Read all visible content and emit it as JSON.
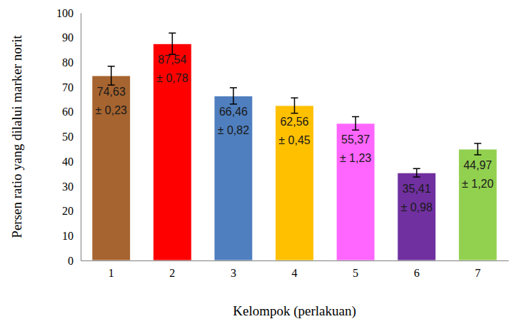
{
  "chart_data": {
    "type": "bar",
    "x_label": "Kelompok (perlakuan)",
    "y_label": "Persen ratio yang dilalui marker norit",
    "categories": [
      "1",
      "2",
      "3",
      "4",
      "5",
      "6",
      "7"
    ],
    "values": [
      74.63,
      87.54,
      66.46,
      62.56,
      55.37,
      35.41,
      44.97
    ],
    "value_labels": [
      "74,63",
      "87,54",
      "66,46",
      "62,56",
      "55,37",
      "35,41",
      "44,97"
    ],
    "errors": [
      0.23,
      0.78,
      0.82,
      0.45,
      1.23,
      0.98,
      1.2
    ],
    "error_labels": [
      "± 0,23",
      "± 0,78",
      "± 0,82",
      "± 0,45",
      "± 1,23",
      "± 0,98",
      "± 1,20"
    ],
    "error_bars": [
      3.8,
      4.3,
      3.3,
      3.1,
      2.7,
      1.7,
      2.3
    ],
    "colors": [
      "#a66430",
      "#ff0000",
      "#4f7fbe",
      "#ffc000",
      "#ff66ff",
      "#7030a0",
      "#92d050"
    ],
    "ylim": [
      0,
      100
    ],
    "yticks": [
      0,
      10,
      20,
      30,
      40,
      50,
      60,
      70,
      80,
      90,
      100
    ],
    "grid": false,
    "data_labels": true
  }
}
